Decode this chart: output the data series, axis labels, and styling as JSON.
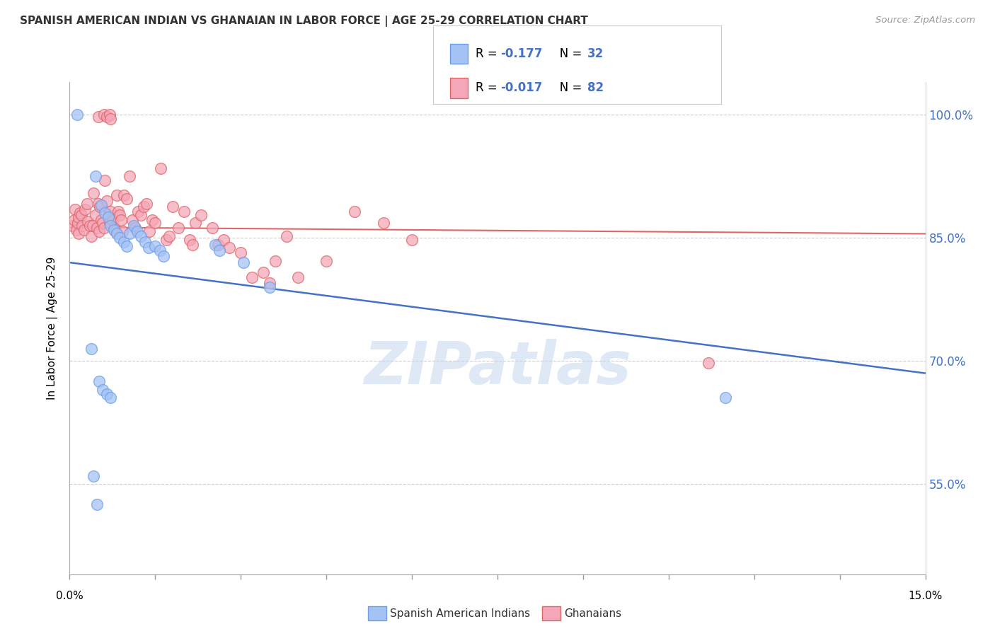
{
  "title": "SPANISH AMERICAN INDIAN VS GHANAIAN IN LABOR FORCE | AGE 25-29 CORRELATION CHART",
  "source": "Source: ZipAtlas.com",
  "ylabel": "In Labor Force | Age 25-29",
  "y_ticks": [
    55.0,
    70.0,
    85.0,
    100.0
  ],
  "x_range": [
    0.0,
    15.0
  ],
  "y_range": [
    44.0,
    104.0
  ],
  "legend1_label_r": "R = ",
  "legend1_r_val": "-0.177",
  "legend1_n": "  N = 32",
  "legend2_label_r": "R = ",
  "legend2_r_val": "-0.017",
  "legend2_n": "  N = 82",
  "legend1_fill": "#a4c2f4",
  "legend2_fill": "#f4a7b9",
  "legend1_edge": "#6d9eeb",
  "legend2_edge": "#e06666",
  "trendline1_color": "#4472c4",
  "trendline2_color": "#e06666",
  "watermark": "ZIPatlas",
  "trendline1_x0": 0.0,
  "trendline1_y0": 82.0,
  "trendline1_x1": 15.0,
  "trendline1_y1": 68.5,
  "trendline2_x0": 0.0,
  "trendline2_y0": 86.3,
  "trendline2_x1": 15.0,
  "trendline2_y1": 85.5,
  "blue_dots": [
    [
      0.13,
      100.0
    ],
    [
      0.45,
      92.5
    ],
    [
      0.55,
      89.0
    ],
    [
      0.62,
      88.0
    ],
    [
      0.68,
      87.5
    ],
    [
      0.72,
      86.5
    ],
    [
      0.78,
      86.0
    ],
    [
      0.82,
      85.5
    ],
    [
      0.88,
      85.0
    ],
    [
      0.95,
      84.5
    ],
    [
      1.0,
      84.0
    ],
    [
      1.05,
      85.5
    ],
    [
      1.12,
      86.5
    ],
    [
      1.18,
      85.8
    ],
    [
      1.25,
      85.2
    ],
    [
      1.32,
      84.5
    ],
    [
      1.38,
      83.8
    ],
    [
      1.5,
      84.0
    ],
    [
      1.58,
      83.5
    ],
    [
      1.65,
      82.8
    ],
    [
      2.55,
      84.2
    ],
    [
      2.62,
      83.5
    ],
    [
      3.05,
      82.0
    ],
    [
      3.5,
      79.0
    ],
    [
      0.38,
      71.5
    ],
    [
      0.52,
      67.5
    ],
    [
      0.58,
      66.5
    ],
    [
      0.65,
      66.0
    ],
    [
      0.72,
      65.5
    ],
    [
      0.42,
      56.0
    ],
    [
      0.48,
      52.5
    ],
    [
      11.5,
      65.5
    ]
  ],
  "pink_dots": [
    [
      0.05,
      86.5
    ],
    [
      0.08,
      87.2
    ],
    [
      0.1,
      88.5
    ],
    [
      0.12,
      86.0
    ],
    [
      0.14,
      86.8
    ],
    [
      0.15,
      87.5
    ],
    [
      0.16,
      85.5
    ],
    [
      0.18,
      88.0
    ],
    [
      0.2,
      87.8
    ],
    [
      0.22,
      86.5
    ],
    [
      0.25,
      86.0
    ],
    [
      0.27,
      88.5
    ],
    [
      0.3,
      89.2
    ],
    [
      0.32,
      87.0
    ],
    [
      0.35,
      86.5
    ],
    [
      0.38,
      85.2
    ],
    [
      0.4,
      86.5
    ],
    [
      0.42,
      90.5
    ],
    [
      0.45,
      87.8
    ],
    [
      0.48,
      86.2
    ],
    [
      0.5,
      89.2
    ],
    [
      0.51,
      85.8
    ],
    [
      0.53,
      88.8
    ],
    [
      0.55,
      87.2
    ],
    [
      0.58,
      86.8
    ],
    [
      0.6,
      86.2
    ],
    [
      0.62,
      92.0
    ],
    [
      0.65,
      89.5
    ],
    [
      0.68,
      87.8
    ],
    [
      0.7,
      86.8
    ],
    [
      0.72,
      88.2
    ],
    [
      0.75,
      87.2
    ],
    [
      0.78,
      86.2
    ],
    [
      0.8,
      85.8
    ],
    [
      0.82,
      90.2
    ],
    [
      0.85,
      88.2
    ],
    [
      0.88,
      87.8
    ],
    [
      0.9,
      87.2
    ],
    [
      0.92,
      85.8
    ],
    [
      0.95,
      90.2
    ],
    [
      1.0,
      89.8
    ],
    [
      1.05,
      92.5
    ],
    [
      1.1,
      87.2
    ],
    [
      1.15,
      86.2
    ],
    [
      1.2,
      88.2
    ],
    [
      1.25,
      87.8
    ],
    [
      1.3,
      88.8
    ],
    [
      1.35,
      89.2
    ],
    [
      1.4,
      85.8
    ],
    [
      1.45,
      87.2
    ],
    [
      1.5,
      86.8
    ],
    [
      1.6,
      93.5
    ],
    [
      1.7,
      84.8
    ],
    [
      1.75,
      85.2
    ],
    [
      1.8,
      88.8
    ],
    [
      1.9,
      86.2
    ],
    [
      2.0,
      88.2
    ],
    [
      2.1,
      84.8
    ],
    [
      2.15,
      84.2
    ],
    [
      2.2,
      86.8
    ],
    [
      2.3,
      87.8
    ],
    [
      2.5,
      86.2
    ],
    [
      2.6,
      84.2
    ],
    [
      2.7,
      84.8
    ],
    [
      2.8,
      83.8
    ],
    [
      3.0,
      83.2
    ],
    [
      3.2,
      80.2
    ],
    [
      3.4,
      80.8
    ],
    [
      3.6,
      82.2
    ],
    [
      3.8,
      85.2
    ],
    [
      4.0,
      80.2
    ],
    [
      4.5,
      82.2
    ],
    [
      5.0,
      88.2
    ],
    [
      5.5,
      86.8
    ],
    [
      6.0,
      84.8
    ],
    [
      0.5,
      99.8
    ],
    [
      0.6,
      100.0
    ],
    [
      0.65,
      99.8
    ],
    [
      0.7,
      100.0
    ],
    [
      0.72,
      99.5
    ],
    [
      11.2,
      69.8
    ],
    [
      3.5,
      79.5
    ]
  ]
}
